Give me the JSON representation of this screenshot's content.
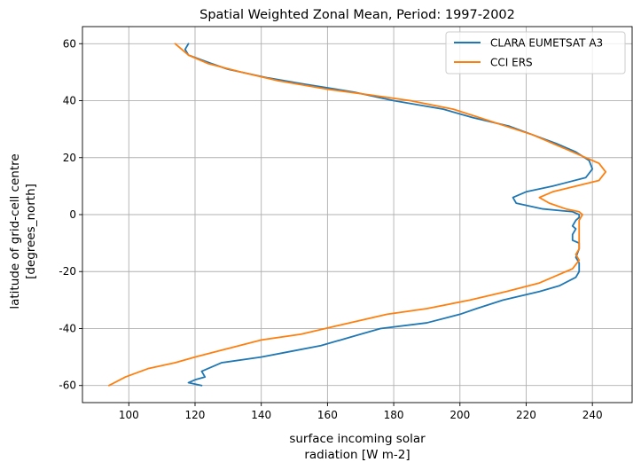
{
  "chart_data": {
    "type": "line",
    "title": "Spatial Weighted Zonal Mean, Period: 1997-2002",
    "xlabel": [
      "surface incoming solar",
      "radiation [W m-2]"
    ],
    "ylabel": [
      "latitude of grid-cell centre",
      "[degrees_north]"
    ],
    "xlim": [
      86,
      252
    ],
    "ylim": [
      -66,
      66
    ],
    "xticks": [
      100,
      120,
      140,
      160,
      180,
      200,
      220,
      240
    ],
    "yticks": [
      -60,
      -40,
      -20,
      0,
      20,
      40,
      60
    ],
    "grid": true,
    "legend_position": "top-right",
    "series": [
      {
        "name": "CLARA EUMETSAT A3",
        "color": "#1f77b4",
        "points": [
          [
            122,
            -60
          ],
          [
            118,
            -59
          ],
          [
            120,
            -58
          ],
          [
            123,
            -57
          ],
          [
            122,
            -55
          ],
          [
            128,
            -52
          ],
          [
            140,
            -50
          ],
          [
            149,
            -48
          ],
          [
            158,
            -46
          ],
          [
            164,
            -44
          ],
          [
            170,
            -42
          ],
          [
            176,
            -40
          ],
          [
            190,
            -38
          ],
          [
            200,
            -35
          ],
          [
            205,
            -33
          ],
          [
            213,
            -30
          ],
          [
            224,
            -27
          ],
          [
            230,
            -25
          ],
          [
            235,
            -22
          ],
          [
            236,
            -20
          ],
          [
            236,
            -17
          ],
          [
            235,
            -15
          ],
          [
            236,
            -12
          ],
          [
            236,
            -10
          ],
          [
            234,
            -9
          ],
          [
            234,
            -7
          ],
          [
            235,
            -5
          ],
          [
            234,
            -4
          ],
          [
            235,
            -2
          ],
          [
            236,
            -1
          ],
          [
            236,
            0
          ],
          [
            234,
            1
          ],
          [
            225,
            2
          ],
          [
            217,
            4
          ],
          [
            216,
            6
          ],
          [
            220,
            8
          ],
          [
            228,
            10
          ],
          [
            238,
            13
          ],
          [
            240,
            16
          ],
          [
            239,
            19
          ],
          [
            235,
            22
          ],
          [
            229,
            25
          ],
          [
            222,
            28
          ],
          [
            215,
            31
          ],
          [
            204,
            34
          ],
          [
            195,
            37
          ],
          [
            180,
            40
          ],
          [
            168,
            43
          ],
          [
            152,
            46
          ],
          [
            142,
            48
          ],
          [
            130,
            51
          ],
          [
            125,
            53
          ],
          [
            118,
            56
          ],
          [
            117,
            58
          ],
          [
            118,
            60
          ]
        ]
      },
      {
        "name": "CCI ERS",
        "color": "#ff7f0e",
        "points": [
          [
            94,
            -60
          ],
          [
            99,
            -57
          ],
          [
            106,
            -54
          ],
          [
            114,
            -52
          ],
          [
            120,
            -50
          ],
          [
            130,
            -47
          ],
          [
            140,
            -44
          ],
          [
            152,
            -42
          ],
          [
            163,
            -39
          ],
          [
            178,
            -35
          ],
          [
            190,
            -33
          ],
          [
            203,
            -30
          ],
          [
            214,
            -27
          ],
          [
            224,
            -24
          ],
          [
            230,
            -21
          ],
          [
            234,
            -19
          ],
          [
            236,
            -16
          ],
          [
            235,
            -14
          ],
          [
            236,
            -12
          ],
          [
            236,
            -10
          ],
          [
            236,
            -8
          ],
          [
            236,
            -6
          ],
          [
            236,
            -4
          ],
          [
            236,
            -2
          ],
          [
            237,
            0
          ],
          [
            236,
            1
          ],
          [
            232,
            2
          ],
          [
            227,
            4
          ],
          [
            224,
            6
          ],
          [
            228,
            8
          ],
          [
            235,
            10
          ],
          [
            242,
            12
          ],
          [
            244,
            15
          ],
          [
            242,
            18
          ],
          [
            236,
            21
          ],
          [
            230,
            24
          ],
          [
            222,
            28
          ],
          [
            214,
            31
          ],
          [
            206,
            34
          ],
          [
            198,
            37
          ],
          [
            185,
            40
          ],
          [
            173,
            42
          ],
          [
            160,
            44
          ],
          [
            145,
            47
          ],
          [
            134,
            50
          ],
          [
            124,
            53
          ],
          [
            118,
            56
          ],
          [
            116,
            58
          ],
          [
            114,
            60
          ]
        ]
      }
    ]
  }
}
